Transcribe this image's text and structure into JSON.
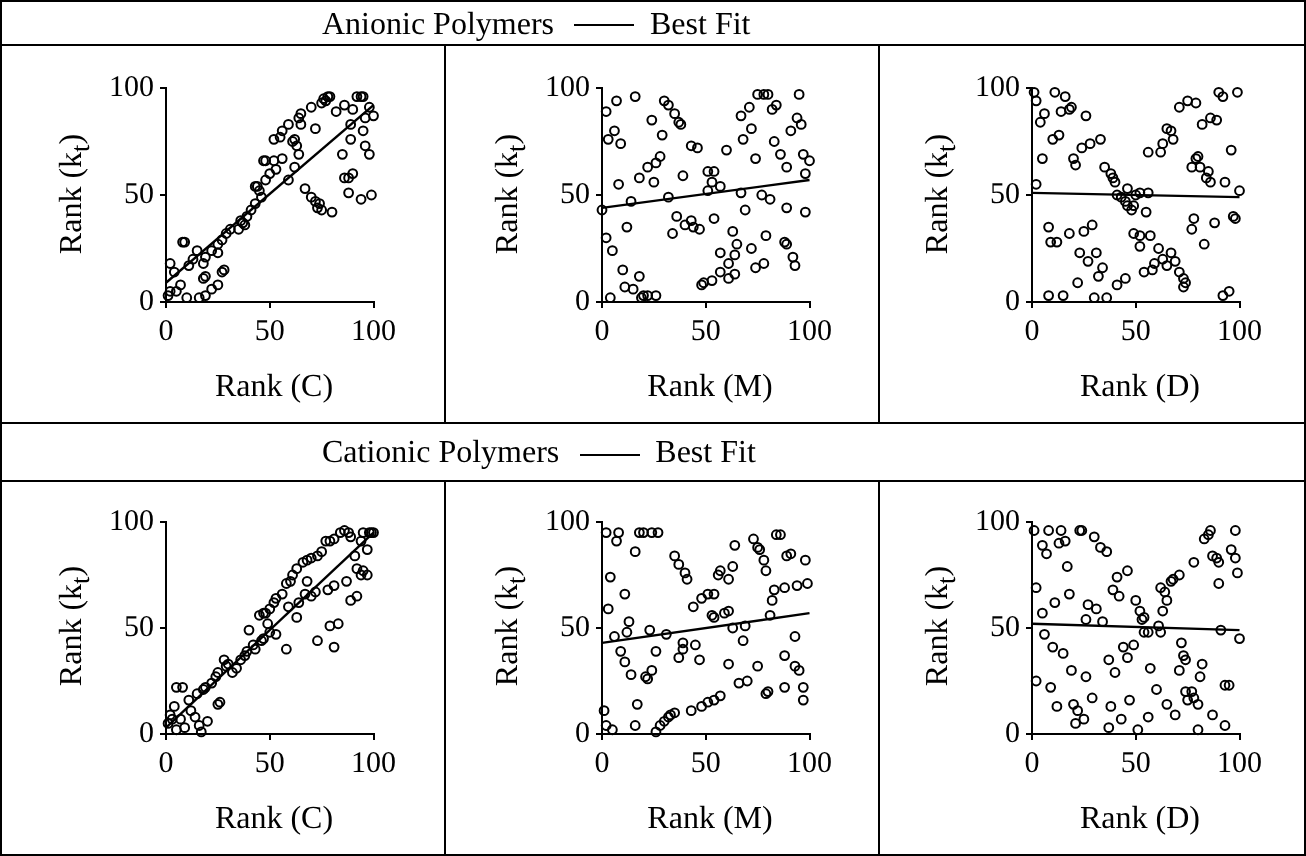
{
  "chart_data": [
    {
      "type": "scatter",
      "title": "Anionic Polymers",
      "legend": "top",
      "xlabel": "Rank (C)",
      "ylabel": "Rank (k$_{t}$)",
      "xlim": [
        0,
        100
      ],
      "ylim": [
        0,
        100
      ],
      "xticks": [
        0,
        50,
        100
      ],
      "yticks": [
        0,
        50,
        100
      ],
      "marker": "circle",
      "series": [
        {
          "color": "#000000",
          "x": [
            76,
            78,
            79,
            77,
            75,
            92,
            94,
            95,
            86,
            82,
            90,
            98,
            100,
            96,
            89,
            70,
            65,
            64,
            59,
            55,
            52,
            56,
            62,
            61,
            63,
            64,
            72,
            65,
            47,
            48,
            52,
            56,
            53,
            50,
            62,
            59,
            48,
            44,
            46,
            43,
            41,
            39,
            37,
            35,
            36,
            38,
            31,
            29,
            27,
            25,
            22,
            25,
            19,
            18,
            13,
            11,
            8,
            9,
            15,
            2,
            4,
            7,
            2,
            10,
            16,
            19,
            22,
            25,
            27,
            28,
            19,
            18,
            1,
            5,
            67,
            70,
            72,
            73,
            75,
            74,
            80,
            86,
            88,
            90,
            88,
            94,
            99,
            98,
            96,
            95,
            89,
            85,
            43,
            45
          ],
          "values": [
            95,
            96,
            96,
            94,
            93,
            96,
            96,
            96,
            92,
            89,
            90,
            91,
            87,
            86,
            83,
            91,
            88,
            86,
            83,
            77,
            76,
            80,
            76,
            75,
            73,
            69,
            81,
            83,
            66,
            66,
            66,
            67,
            62,
            60,
            63,
            57,
            57,
            54,
            49,
            46,
            43,
            40,
            37,
            34,
            38,
            36,
            34,
            32,
            29,
            27,
            24,
            23,
            21,
            18,
            20,
            17,
            28,
            28,
            24,
            18,
            14,
            8,
            5,
            2,
            2,
            3,
            6,
            8,
            14,
            15,
            12,
            11,
            3,
            5,
            53,
            49,
            47,
            44,
            43,
            46,
            42,
            58,
            58,
            60,
            51,
            48,
            50,
            69,
            73,
            80,
            76,
            69,
            54,
            52
          ]
        },
        {
          "type": "line",
          "name": "Best Fit",
          "color": "#000000",
          "marker": "none",
          "x": [
            0,
            100
          ],
          "values": [
            9,
            92
          ]
        }
      ]
    },
    {
      "type": "scatter",
      "xlabel": "Rank (M)",
      "ylabel": "Rank (k$_{t}$)",
      "xlim": [
        0,
        100
      ],
      "ylim": [
        0,
        100
      ],
      "xticks": [
        0,
        50,
        100
      ],
      "yticks": [
        0,
        50,
        100
      ],
      "marker": "circle",
      "series": [
        {
          "color": "#000000",
          "x": [
            2,
            7,
            16,
            3,
            6,
            9,
            8,
            2,
            5,
            12,
            14,
            10,
            11,
            15,
            18,
            20,
            22,
            19,
            26,
            4,
            18,
            22,
            25,
            26,
            28,
            24,
            30,
            32,
            35,
            37,
            38,
            29,
            43,
            46,
            39,
            32,
            34,
            36,
            40,
            43,
            44,
            47,
            51,
            54,
            53,
            51,
            57,
            60,
            54,
            63,
            65,
            61,
            64,
            57,
            48,
            49,
            53,
            57,
            61,
            64,
            67,
            69,
            72,
            74,
            78,
            79,
            77,
            81,
            74,
            68,
            67,
            71,
            72,
            75,
            78,
            80,
            82,
            84,
            83,
            86,
            91,
            89,
            89,
            88,
            89,
            92,
            93,
            98,
            95,
            94,
            96,
            97,
            100,
            98,
            0
          ],
          "values": [
            89,
            94,
            96,
            76,
            80,
            74,
            55,
            30,
            24,
            35,
            47,
            15,
            7,
            6,
            12,
            3,
            3,
            2,
            3,
            2,
            58,
            63,
            56,
            65,
            68,
            85,
            94,
            92,
            88,
            84,
            83,
            78,
            73,
            72,
            59,
            49,
            32,
            40,
            36,
            38,
            35,
            34,
            61,
            61,
            56,
            52,
            54,
            71,
            39,
            33,
            27,
            18,
            22,
            23,
            8,
            9,
            10,
            14,
            11,
            13,
            51,
            43,
            25,
            16,
            18,
            31,
            50,
            48,
            67,
            76,
            87,
            91,
            81,
            97,
            97,
            97,
            90,
            92,
            75,
            69,
            80,
            63,
            44,
            28,
            27,
            21,
            17,
            42,
            97,
            86,
            83,
            69,
            66,
            60,
            43
          ]
        },
        {
          "type": "line",
          "color": "#000000",
          "marker": "none",
          "x": [
            0,
            100
          ],
          "values": [
            44,
            57
          ]
        }
      ]
    },
    {
      "type": "scatter",
      "xlabel": "Rank (D)",
      "ylabel": "Rank (k$_{t}$)",
      "xlim": [
        0,
        100
      ],
      "ylim": [
        0,
        100
      ],
      "xticks": [
        0,
        50,
        100
      ],
      "yticks": [
        0,
        50,
        100
      ],
      "marker": "circle",
      "series": [
        {
          "color": "#000000",
          "x": [
            1,
            2,
            4,
            6,
            5,
            2,
            11,
            16,
            14,
            18,
            19,
            26,
            10,
            13,
            20,
            21,
            24,
            28,
            33,
            35,
            38,
            39,
            40,
            41,
            43,
            45,
            46,
            48,
            49,
            46,
            50,
            52,
            55,
            56,
            62,
            63,
            65,
            67,
            68,
            71,
            75,
            79,
            82,
            86,
            89,
            90,
            92,
            99,
            79,
            80,
            77,
            81,
            84,
            85,
            86,
            93,
            96,
            100,
            8,
            9,
            12,
            18,
            25,
            29,
            23,
            27,
            31,
            34,
            22,
            32,
            8,
            15,
            30,
            36,
            41,
            45,
            49,
            52,
            52,
            57,
            61,
            63,
            65,
            54,
            58,
            59,
            67,
            69,
            71,
            73,
            74,
            73,
            77,
            78,
            83,
            88,
            97,
            98,
            92,
            95,
            56
          ],
          "values": [
            98,
            94,
            84,
            88,
            67,
            55,
            98,
            96,
            89,
            90,
            91,
            87,
            76,
            78,
            67,
            64,
            72,
            74,
            76,
            63,
            60,
            58,
            56,
            50,
            49,
            47,
            45,
            43,
            45,
            53,
            50,
            51,
            42,
            70,
            70,
            74,
            81,
            80,
            76,
            91,
            94,
            93,
            83,
            86,
            85,
            98,
            96,
            98,
            67,
            68,
            63,
            63,
            58,
            61,
            56,
            56,
            71,
            52,
            35,
            28,
            28,
            32,
            33,
            36,
            23,
            19,
            23,
            16,
            9,
            12,
            3,
            3,
            2,
            2,
            8,
            11,
            32,
            31,
            26,
            31,
            25,
            20,
            17,
            14,
            15,
            18,
            23,
            19,
            14,
            11,
            9,
            7,
            34,
            39,
            27,
            37,
            40,
            39,
            3,
            5,
            51
          ]
        },
        {
          "type": "line",
          "color": "#000000",
          "marker": "none",
          "x": [
            0,
            100
          ],
          "values": [
            51,
            49
          ]
        }
      ]
    },
    {
      "type": "scatter",
      "title": "Cationic Polymers",
      "legend": "top",
      "xlabel": "Rank (C)",
      "ylabel": "Rank (k$_{t}$)",
      "xlim": [
        0,
        100
      ],
      "ylim": [
        0,
        100
      ],
      "xticks": [
        0,
        50,
        100
      ],
      "yticks": [
        0,
        50,
        100
      ],
      "marker": "circle",
      "series": [
        {
          "color": "#000000",
          "x": [
            1,
            2,
            4,
            5,
            8,
            7,
            5,
            9,
            11,
            12,
            14,
            16,
            17,
            20,
            15,
            18,
            19,
            22,
            25,
            26,
            24,
            25,
            29,
            30,
            32,
            34,
            36,
            38,
            39,
            40,
            42,
            43,
            46,
            47,
            49,
            50,
            53,
            45,
            47,
            48,
            50,
            52,
            53,
            56,
            58,
            60,
            61,
            63,
            66,
            68,
            70,
            73,
            75,
            77,
            79,
            81,
            84,
            86,
            88,
            89,
            95,
            98,
            99,
            100,
            94,
            91,
            92,
            94,
            95,
            97,
            97,
            72,
            67,
            70,
            64,
            63,
            59,
            79,
            83,
            73,
            81,
            89,
            92,
            87,
            81,
            78,
            68,
            58,
            3,
            28
          ],
          "values": [
            5,
            9,
            13,
            22,
            22,
            7,
            2,
            3,
            16,
            11,
            8,
            4,
            1,
            6,
            19,
            21,
            22,
            24,
            14,
            15,
            27,
            29,
            32,
            33,
            29,
            31,
            35,
            37,
            39,
            49,
            42,
            40,
            44,
            45,
            52,
            48,
            47,
            56,
            57,
            57,
            59,
            62,
            64,
            66,
            71,
            72,
            75,
            78,
            81,
            82,
            83,
            84,
            86,
            91,
            91,
            92,
            95,
            96,
            95,
            93,
            95,
            95,
            95,
            95,
            91,
            84,
            78,
            75,
            77,
            75,
            87,
            67,
            66,
            65,
            62,
            55,
            60,
            51,
            52,
            44,
            41,
            63,
            65,
            72,
            70,
            68,
            72,
            40,
            7,
            35
          ]
        },
        {
          "type": "line",
          "name": "Best Fit",
          "color": "#000000",
          "marker": "none",
          "x": [
            0,
            100
          ],
          "values": [
            3,
            95
          ]
        }
      ]
    },
    {
      "type": "scatter",
      "xlabel": "Rank (M)",
      "ylabel": "Rank (k$_{t}$)",
      "xlim": [
        0,
        100
      ],
      "ylim": [
        0,
        100
      ],
      "xticks": [
        0,
        50,
        100
      ],
      "yticks": [
        0,
        50,
        100
      ],
      "marker": "circle",
      "series": [
        {
          "color": "#000000",
          "x": [
            2,
            8,
            7,
            18,
            20,
            24,
            27,
            16,
            4,
            11,
            3,
            13,
            12,
            6,
            9,
            11,
            14,
            21,
            22,
            17,
            1,
            2,
            5,
            16,
            23,
            26,
            24,
            31,
            26,
            28,
            30,
            32,
            33,
            35,
            43,
            48,
            51,
            54,
            57,
            35,
            37,
            40,
            41,
            44,
            48,
            51,
            37,
            39,
            39,
            45,
            47,
            53,
            54,
            56,
            57,
            63,
            64,
            61,
            54,
            59,
            61,
            63,
            69,
            61,
            66,
            70,
            68,
            73,
            75,
            76,
            78,
            79,
            84,
            86,
            89,
            91,
            83,
            88,
            94,
            99,
            82,
            81,
            93,
            88,
            93,
            95,
            97,
            97,
            88,
            79,
            80,
            75,
            98
          ],
          "values": [
            95,
            95,
            91,
            95,
            95,
            95,
            95,
            86,
            74,
            66,
            59,
            53,
            48,
            46,
            39,
            34,
            28,
            27,
            26,
            14,
            11,
            4,
            2,
            4,
            49,
            39,
            30,
            47,
            1,
            4,
            6,
            8,
            9,
            10,
            11,
            13,
            15,
            16,
            18,
            84,
            80,
            76,
            73,
            60,
            64,
            66,
            36,
            43,
            40,
            42,
            35,
            56,
            66,
            75,
            77,
            79,
            89,
            73,
            55,
            57,
            58,
            50,
            51,
            33,
            24,
            25,
            44,
            92,
            88,
            87,
            82,
            77,
            94,
            94,
            84,
            85,
            68,
            69,
            70,
            71,
            63,
            56,
            46,
            37,
            32,
            30,
            22,
            16,
            22,
            19,
            20,
            32,
            82
          ]
        },
        {
          "type": "line",
          "color": "#000000",
          "marker": "none",
          "x": [
            0,
            100
          ],
          "values": [
            43,
            57
          ]
        }
      ]
    },
    {
      "type": "scatter",
      "xlabel": "Rank (D)",
      "ylabel": "Rank (k$_{t}$)",
      "xlim": [
        0,
        100
      ],
      "ylim": [
        0,
        100
      ],
      "xticks": [
        0,
        50,
        100
      ],
      "yticks": [
        0,
        50,
        100
      ],
      "marker": "circle",
      "series": [
        {
          "color": "#000000",
          "x": [
            1,
            8,
            14,
            23,
            24,
            5,
            7,
            13,
            16,
            30,
            33,
            36,
            17,
            2,
            5,
            11,
            18,
            27,
            31,
            26,
            34,
            41,
            46,
            39,
            42,
            50,
            52,
            54,
            53,
            62,
            64,
            65,
            67,
            68,
            71,
            63,
            78,
            83,
            85,
            86,
            87,
            89,
            90,
            96,
            98,
            99,
            98,
            90,
            61,
            62,
            56,
            91,
            100,
            6,
            10,
            15,
            2,
            9,
            12,
            19,
            26,
            20,
            22,
            21,
            25,
            29,
            37,
            40,
            44,
            46,
            49,
            38,
            43,
            47,
            37,
            51,
            57,
            60,
            56,
            65,
            72,
            73,
            74,
            71,
            74,
            77,
            78,
            75,
            69,
            82,
            81,
            80,
            93,
            95,
            87,
            93,
            80,
            54
          ],
          "values": [
            96,
            96,
            96,
            96,
            96,
            89,
            85,
            90,
            91,
            93,
            88,
            86,
            79,
            69,
            57,
            62,
            66,
            61,
            59,
            54,
            53,
            74,
            77,
            68,
            65,
            63,
            58,
            55,
            54,
            69,
            67,
            63,
            72,
            73,
            75,
            58,
            81,
            92,
            94,
            96,
            84,
            83,
            81,
            87,
            83,
            76,
            96,
            71,
            51,
            48,
            48,
            49,
            45,
            47,
            41,
            38,
            25,
            22,
            13,
            30,
            27,
            14,
            11,
            5,
            7,
            17,
            35,
            29,
            41,
            36,
            42,
            13,
            7,
            16,
            3,
            2,
            31,
            21,
            8,
            14,
            43,
            37,
            35,
            30,
            20,
            20,
            17,
            16,
            9,
            33,
            27,
            14,
            23,
            23,
            9,
            4,
            2,
            48
          ]
        },
        {
          "type": "line",
          "color": "#000000",
          "marker": "none",
          "x": [
            0,
            100
          ],
          "values": [
            52,
            49
          ]
        }
      ]
    }
  ]
}
